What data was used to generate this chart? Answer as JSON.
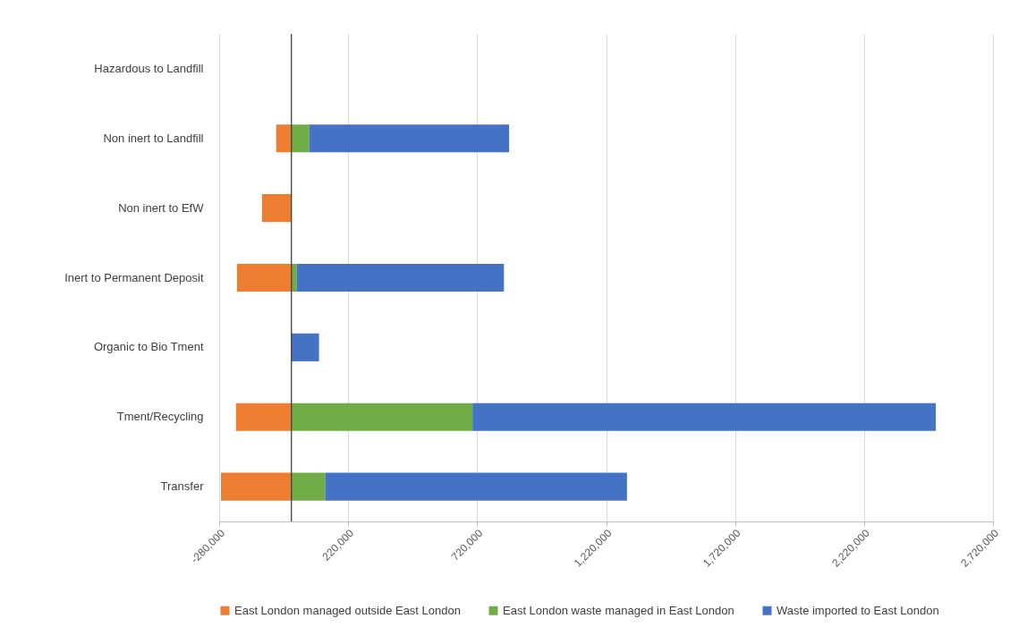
{
  "chart_data": {
    "type": "bar",
    "orientation": "horizontal",
    "stacked": true,
    "categories": [
      "Hazardous to Landfill",
      "Non inert to Landfill",
      "Non inert to EfW",
      "Inert to Permanent Deposit",
      "Organic to Bio Tment",
      "Tment/Recycling",
      "Transfer"
    ],
    "series": [
      {
        "name": "East London managed outside East London",
        "color": "#ed7d31",
        "values": [
          null,
          -59000,
          -114000,
          -211000,
          null,
          -215000,
          -273000
        ]
      },
      {
        "name": "East London waste managed in East London",
        "color": "#70ad47",
        "values": [
          null,
          69000,
          null,
          21000,
          null,
          702000,
          131000
        ]
      },
      {
        "name": "Waste imported to East London",
        "color": "#4472c4",
        "values": [
          null,
          775000,
          null,
          803000,
          107000,
          1796000,
          1170000
        ]
      }
    ],
    "xlim": [
      -280000,
      2720000
    ],
    "xticks": [
      {
        "value": -280000,
        "label": "-280,000"
      },
      {
        "value": 220000,
        "label": "220,000"
      },
      {
        "value": 720000,
        "label": "720,000"
      },
      {
        "value": 1220000,
        "label": "1,220,000"
      },
      {
        "value": 1720000,
        "label": "1,720,000"
      },
      {
        "value": 2220000,
        "label": "2,220,000"
      },
      {
        "value": 2720000,
        "label": "2,720,000"
      }
    ],
    "ref_lines": [
      {
        "axis": "x",
        "value": 0
      }
    ],
    "grid": "x",
    "legend": "bottom"
  }
}
